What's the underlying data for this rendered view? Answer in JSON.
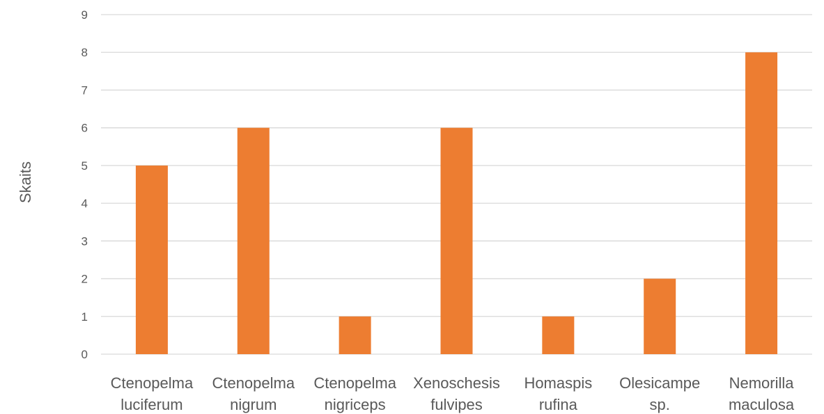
{
  "chart_data": {
    "type": "bar",
    "categories": [
      [
        "Ctenopelma",
        "luciferum"
      ],
      [
        "Ctenopelma",
        "nigrum"
      ],
      [
        "Ctenopelma",
        "nigriceps"
      ],
      [
        "Xenoschesis",
        "fulvipes"
      ],
      [
        "Homaspis",
        "rufina"
      ],
      [
        "Olesicampe",
        "sp."
      ],
      [
        "Nemorilla",
        "maculosa"
      ]
    ],
    "values": [
      5,
      6,
      1,
      6,
      1,
      2,
      8
    ],
    "title": "",
    "xlabel": "",
    "ylabel": "Skaits",
    "ylim": [
      0,
      9
    ],
    "yticks": [
      0,
      1,
      2,
      3,
      4,
      5,
      6,
      7,
      8,
      9
    ],
    "grid": true,
    "legend": "none",
    "bar_color": "#ED7D31",
    "grid_color": "#D9D9D9",
    "text_color": "#595959"
  }
}
